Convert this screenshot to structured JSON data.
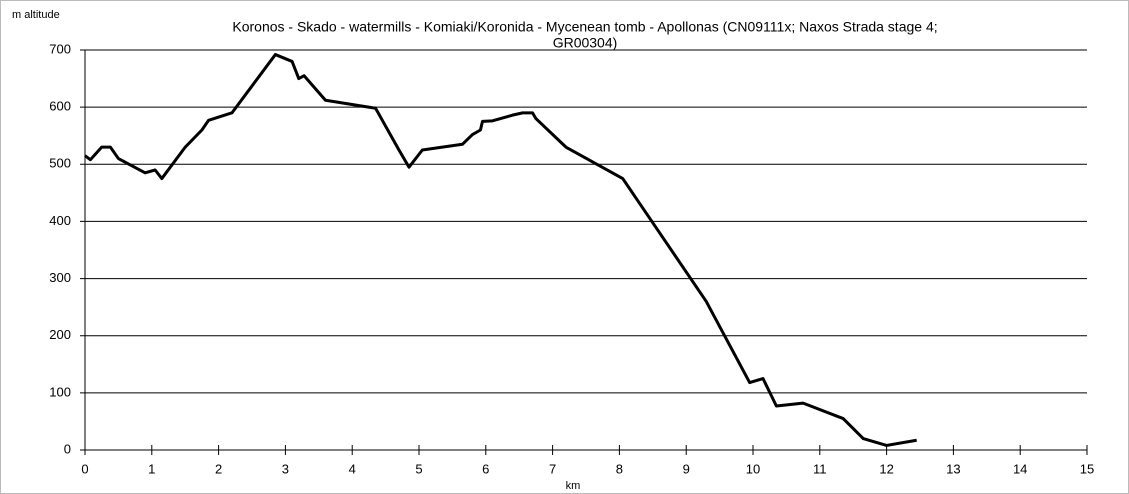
{
  "chart_data": {
    "type": "line",
    "title_lines": [
      "Koronos - Skado - watermills - Komiaki/Koronida - Mycenean tomb - Apollonas (CN09111x; Naxos Strada stage 4;",
      "GR00304)"
    ],
    "y_label": "m altitude",
    "x_label": "km",
    "x": [
      0,
      0.08,
      0.25,
      0.38,
      0.5,
      0.9,
      1.05,
      1.15,
      1.5,
      1.75,
      1.85,
      2.2,
      2.85,
      3.1,
      3.2,
      3.28,
      3.6,
      4.35,
      4.7,
      4.85,
      5.05,
      5.65,
      5.8,
      5.92,
      5.95,
      6.1,
      6.4,
      6.55,
      6.7,
      6.75,
      7.2,
      8.05,
      9.3,
      9.95,
      10.15,
      10.35,
      10.75,
      11.35,
      11.65,
      12.0,
      12.45
    ],
    "series": [
      {
        "name": "altitude",
        "color": "#000000",
        "values": [
          515,
          508,
          530,
          530,
          510,
          485,
          490,
          475,
          530,
          560,
          577,
          590,
          692,
          680,
          650,
          655,
          612,
          598,
          525,
          495,
          525,
          535,
          552,
          560,
          575,
          576,
          586,
          590,
          590,
          580,
          530,
          475,
          260,
          118,
          125,
          77,
          82,
          55,
          20,
          8,
          17
        ]
      }
    ],
    "xlim": [
      0,
      15
    ],
    "xticks": [
      0,
      1,
      2,
      3,
      4,
      5,
      6,
      7,
      8,
      9,
      10,
      11,
      12,
      13,
      14,
      15
    ],
    "ylim": [
      0,
      700
    ],
    "yticks": [
      0,
      100,
      200,
      300,
      400,
      500,
      600,
      700
    ],
    "grid": true
  }
}
